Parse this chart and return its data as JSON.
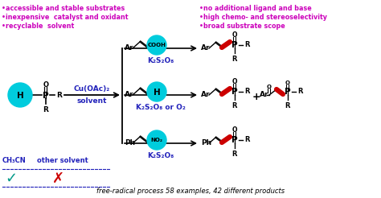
{
  "bg_color": "#ffffff",
  "cyan_color": "#00CCDD",
  "magenta_color": "#CC00BB",
  "blue_color": "#2222BB",
  "red_color": "#CC0000",
  "teal_color": "#009988",
  "black": "#000000",
  "title": "free-radical process 58 examples, 42 different products",
  "left_bullets": [
    "•accessible and stable substrates",
    "•inexpensive  catalyst and oxidant",
    "•recyclable  solvent"
  ],
  "right_bullets": [
    "•no additional ligand and base",
    "•high chemo- and stereoselectivity",
    "•broad substrate scope"
  ],
  "reagent_top": "K₂S₂O₈",
  "reagent_mid": "K₂S₂O₈ or O₂",
  "reagent_bot": "K₂S₂O₈",
  "catalyst": "Cu(OAc)₂",
  "solvent_label": "solvent",
  "ch3cn": "CH₃CN",
  "other_solvent": "other solvent",
  "fig_width": 4.74,
  "fig_height": 2.46,
  "dpi": 100
}
